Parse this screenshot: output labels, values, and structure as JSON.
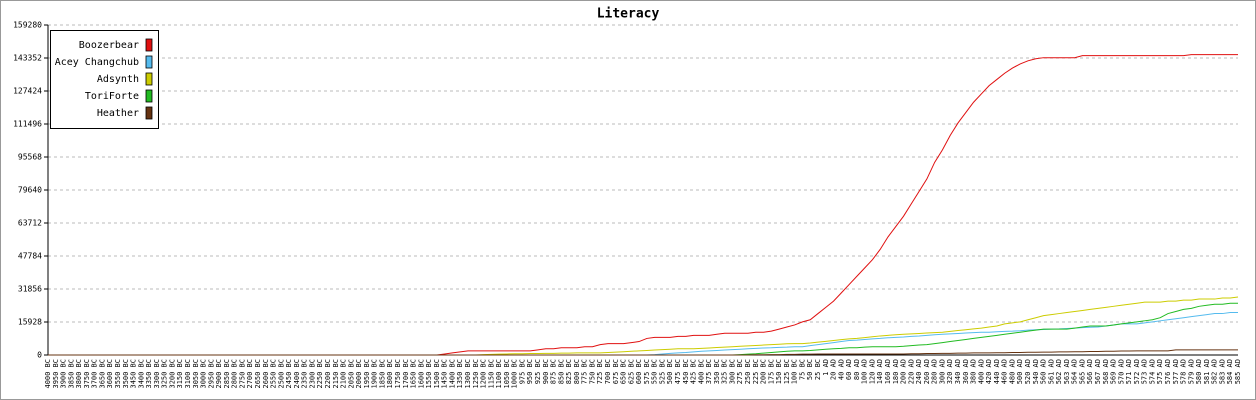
{
  "chart_data": {
    "type": "line",
    "title": "Literacy",
    "categories": [
      "4000 BC",
      "3950 BC",
      "3900 BC",
      "3850 BC",
      "3800 BC",
      "3750 BC",
      "3700 BC",
      "3650 BC",
      "3600 BC",
      "3550 BC",
      "3500 BC",
      "3450 BC",
      "3400 BC",
      "3350 BC",
      "3300 BC",
      "3250 BC",
      "3200 BC",
      "3150 BC",
      "3100 BC",
      "3050 BC",
      "3000 BC",
      "2950 BC",
      "2900 BC",
      "2850 BC",
      "2800 BC",
      "2750 BC",
      "2700 BC",
      "2650 BC",
      "2600 BC",
      "2550 BC",
      "2500 BC",
      "2450 BC",
      "2400 BC",
      "2350 BC",
      "2300 BC",
      "2250 BC",
      "2200 BC",
      "2150 BC",
      "2100 BC",
      "2050 BC",
      "2000 BC",
      "1950 BC",
      "1900 BC",
      "1850 BC",
      "1800 BC",
      "1750 BC",
      "1700 BC",
      "1650 BC",
      "1600 BC",
      "1550 BC",
      "1500 BC",
      "1450 BC",
      "1400 BC",
      "1350 BC",
      "1300 BC",
      "1250 BC",
      "1200 BC",
      "1150 BC",
      "1100 BC",
      "1050 BC",
      "1000 BC",
      "975 BC",
      "950 BC",
      "925 BC",
      "900 BC",
      "875 BC",
      "850 BC",
      "825 BC",
      "800 BC",
      "775 BC",
      "750 BC",
      "725 BC",
      "700 BC",
      "675 BC",
      "650 BC",
      "625 BC",
      "600 BC",
      "575 BC",
      "550 BC",
      "525 BC",
      "500 BC",
      "475 BC",
      "450 BC",
      "425 BC",
      "400 BC",
      "375 BC",
      "350 BC",
      "325 BC",
      "300 BC",
      "275 BC",
      "250 BC",
      "225 BC",
      "200 BC",
      "175 BC",
      "150 BC",
      "125 BC",
      "100 BC",
      "75 BC",
      "50 BC",
      "25 BC",
      "1 AD",
      "20 AD",
      "40 AD",
      "60 AD",
      "80 AD",
      "100 AD",
      "120 AD",
      "140 AD",
      "160 AD",
      "180 AD",
      "200 AD",
      "220 AD",
      "240 AD",
      "260 AD",
      "280 AD",
      "300 AD",
      "320 AD",
      "340 AD",
      "360 AD",
      "380 AD",
      "400 AD",
      "420 AD",
      "440 AD",
      "460 AD",
      "480 AD",
      "500 AD",
      "520 AD",
      "540 AD",
      "560 AD",
      "561 AD",
      "562 AD",
      "563 AD",
      "564 AD",
      "565 AD",
      "566 AD",
      "567 AD",
      "568 AD",
      "569 AD",
      "570 AD",
      "571 AD",
      "572 AD",
      "573 AD",
      "574 AD",
      "575 AD",
      "576 AD",
      "577 AD",
      "578 AD",
      "579 AD",
      "580 AD",
      "581 AD",
      "582 AD",
      "583 AD",
      "584 AD",
      "585 AD"
    ],
    "series": [
      {
        "name": "Boozerbear",
        "color": "#e01010",
        "values": [
          0,
          0,
          0,
          0,
          0,
          0,
          0,
          0,
          0,
          0,
          0,
          0,
          0,
          0,
          0,
          0,
          0,
          0,
          0,
          0,
          0,
          0,
          0,
          0,
          0,
          0,
          0,
          0,
          0,
          0,
          0,
          0,
          0,
          0,
          0,
          0,
          0,
          0,
          0,
          0,
          0,
          0,
          0,
          0,
          0,
          0,
          0,
          0,
          0,
          0,
          0,
          500,
          1000,
          1500,
          2000,
          2000,
          2000,
          2000,
          2000,
          2000,
          2000,
          2000,
          2000,
          2500,
          3000,
          3000,
          3500,
          3500,
          3500,
          4000,
          4000,
          5000,
          5500,
          5500,
          5500,
          6000,
          6500,
          8000,
          8500,
          8500,
          8500,
          9000,
          9000,
          9500,
          9500,
          9500,
          10000,
          10500,
          10500,
          10500,
          10500,
          11000,
          11000,
          11500,
          12500,
          13500,
          14500,
          16000,
          17000,
          20000,
          23000,
          26000,
          30000,
          34000,
          38000,
          42000,
          46000,
          51000,
          57000,
          62000,
          67000,
          73000,
          79000,
          85000,
          93000,
          99000,
          106000,
          112000,
          117000,
          122000,
          126000,
          130000,
          133000,
          136000,
          138500,
          140500,
          142000,
          143000,
          143500,
          143500,
          143500,
          143500,
          143500,
          144500,
          144500,
          144500,
          144500,
          144500,
          144500,
          144500,
          144500,
          144500,
          144500,
          144500,
          144500,
          144500,
          144500,
          145000,
          145000,
          145000,
          145000,
          145000,
          145000,
          145000
        ]
      },
      {
        "name": "Acey Changchub",
        "color": "#55bbee",
        "values": [
          0,
          0,
          0,
          0,
          0,
          0,
          0,
          0,
          0,
          0,
          0,
          0,
          0,
          0,
          0,
          0,
          0,
          0,
          0,
          0,
          0,
          0,
          0,
          0,
          0,
          0,
          0,
          0,
          0,
          0,
          0,
          0,
          0,
          0,
          0,
          0,
          0,
          0,
          0,
          0,
          0,
          0,
          0,
          0,
          0,
          0,
          0,
          0,
          0,
          0,
          0,
          0,
          0,
          0,
          0,
          0,
          0,
          0,
          0,
          0,
          0,
          0,
          0,
          0,
          0,
          0,
          0,
          0,
          0,
          0,
          0,
          0,
          0,
          0,
          0,
          0,
          0,
          0,
          200,
          500,
          800,
          1000,
          1200,
          1500,
          1800,
          2000,
          2200,
          2400,
          2600,
          2800,
          3000,
          3200,
          3400,
          3500,
          3700,
          3800,
          4000,
          4000,
          4500,
          5000,
          5500,
          6000,
          6500,
          7000,
          7200,
          7500,
          7800,
          8000,
          8300,
          8500,
          8700,
          9000,
          9200,
          9500,
          9800,
          10000,
          10200,
          10400,
          10600,
          10800,
          11000,
          11000,
          11200,
          11400,
          11500,
          11700,
          12000,
          12200,
          12300,
          12500,
          12600,
          12800,
          13000,
          13200,
          13400,
          13500,
          14000,
          14500,
          15000,
          15000,
          15000,
          15500,
          16000,
          16500,
          17000,
          17500,
          18000,
          18500,
          19000,
          19500,
          20000,
          20000,
          20500,
          20500
        ]
      },
      {
        "name": "Adsynth",
        "color": "#cccc00",
        "values": [
          0,
          0,
          0,
          0,
          0,
          0,
          0,
          0,
          0,
          0,
          0,
          0,
          0,
          0,
          0,
          0,
          0,
          0,
          0,
          0,
          0,
          0,
          0,
          0,
          0,
          0,
          0,
          0,
          0,
          0,
          0,
          0,
          0,
          0,
          0,
          0,
          0,
          0,
          0,
          0,
          0,
          0,
          0,
          0,
          0,
          0,
          0,
          0,
          0,
          0,
          0,
          0,
          0,
          0,
          0,
          0,
          200,
          300,
          400,
          500,
          600,
          600,
          700,
          700,
          800,
          800,
          900,
          900,
          1000,
          1000,
          1000,
          1000,
          1200,
          1400,
          1600,
          1800,
          2000,
          2200,
          2400,
          2600,
          2800,
          3000,
          3000,
          3000,
          3200,
          3400,
          3600,
          3800,
          4000,
          4200,
          4400,
          4600,
          4800,
          5000,
          5200,
          5400,
          5500,
          5500,
          5800,
          6200,
          6600,
          7000,
          7400,
          7800,
          8000,
          8400,
          8800,
          9200,
          9500,
          9800,
          10000,
          10200,
          10400,
          10600,
          10800,
          11000,
          11400,
          11800,
          12200,
          12600,
          13000,
          13500,
          14000,
          15000,
          15500,
          16000,
          17000,
          18000,
          19000,
          19500,
          20000,
          20500,
          21000,
          21500,
          22000,
          22500,
          23000,
          23500,
          24000,
          24500,
          25000,
          25500,
          25500,
          25500,
          26000,
          26000,
          26500,
          26500,
          27000,
          27000,
          27000,
          27500,
          27500,
          28000
        ]
      },
      {
        "name": "ToriForte",
        "color": "#22bb22",
        "values": [
          0,
          0,
          0,
          0,
          0,
          0,
          0,
          0,
          0,
          0,
          0,
          0,
          0,
          0,
          0,
          0,
          0,
          0,
          0,
          0,
          0,
          0,
          0,
          0,
          0,
          0,
          0,
          0,
          0,
          0,
          0,
          0,
          0,
          0,
          0,
          0,
          0,
          0,
          0,
          0,
          0,
          0,
          0,
          0,
          0,
          0,
          0,
          0,
          0,
          0,
          0,
          0,
          0,
          0,
          0,
          0,
          0,
          0,
          0,
          0,
          0,
          0,
          0,
          0,
          0,
          0,
          0,
          0,
          0,
          0,
          0,
          0,
          0,
          0,
          0,
          0,
          0,
          0,
          0,
          0,
          0,
          0,
          0,
          0,
          0,
          0,
          0,
          0,
          0,
          200,
          400,
          600,
          900,
          1200,
          1500,
          1800,
          2000,
          2000,
          2200,
          2500,
          2800,
          3000,
          3200,
          3500,
          3500,
          3800,
          4000,
          4000,
          4000,
          4000,
          4200,
          4500,
          4800,
          5000,
          5500,
          6000,
          6500,
          7000,
          7500,
          8000,
          8500,
          9000,
          9500,
          10000,
          10500,
          11000,
          11500,
          12000,
          12500,
          12500,
          12500,
          12500,
          13000,
          13500,
          14000,
          14000,
          14000,
          14500,
          15000,
          15500,
          16000,
          16500,
          17000,
          18000,
          20000,
          21000,
          22000,
          22500,
          23500,
          24000,
          24500,
          24500,
          25000,
          25000
        ]
      },
      {
        "name": "Heather",
        "color": "#663311",
        "values": [
          0,
          0,
          0,
          0,
          0,
          0,
          0,
          0,
          0,
          0,
          0,
          0,
          0,
          0,
          0,
          0,
          0,
          0,
          0,
          0,
          0,
          0,
          0,
          0,
          0,
          0,
          0,
          0,
          0,
          0,
          0,
          0,
          0,
          0,
          0,
          0,
          0,
          0,
          0,
          0,
          0,
          0,
          0,
          0,
          0,
          0,
          0,
          0,
          0,
          0,
          0,
          0,
          0,
          0,
          0,
          0,
          0,
          0,
          0,
          0,
          0,
          0,
          0,
          0,
          0,
          0,
          0,
          0,
          0,
          0,
          0,
          0,
          0,
          0,
          0,
          0,
          0,
          0,
          0,
          0,
          0,
          0,
          0,
          0,
          0,
          0,
          0,
          0,
          0,
          0,
          0,
          100,
          100,
          200,
          200,
          300,
          300,
          400,
          400,
          500,
          500,
          500,
          500,
          500,
          500,
          500,
          500,
          500,
          500,
          500,
          500,
          600,
          600,
          700,
          700,
          800,
          800,
          900,
          900,
          1000,
          1000,
          1000,
          1100,
          1100,
          1200,
          1200,
          1300,
          1300,
          1400,
          1400,
          1500,
          1500,
          1600,
          1600,
          1700,
          1700,
          1800,
          1800,
          1900,
          1900,
          2000,
          2000,
          2000,
          2000,
          2000,
          2500,
          2500,
          2500,
          2500,
          2500,
          2500,
          2500,
          2500,
          2500
        ]
      }
    ],
    "ylim": [
      0,
      159280
    ],
    "yticks": [
      0,
      15928,
      31856,
      47784,
      63712,
      79640,
      95568,
      111496,
      127424,
      143352,
      159280
    ],
    "grid": true,
    "legend": "top-left"
  }
}
